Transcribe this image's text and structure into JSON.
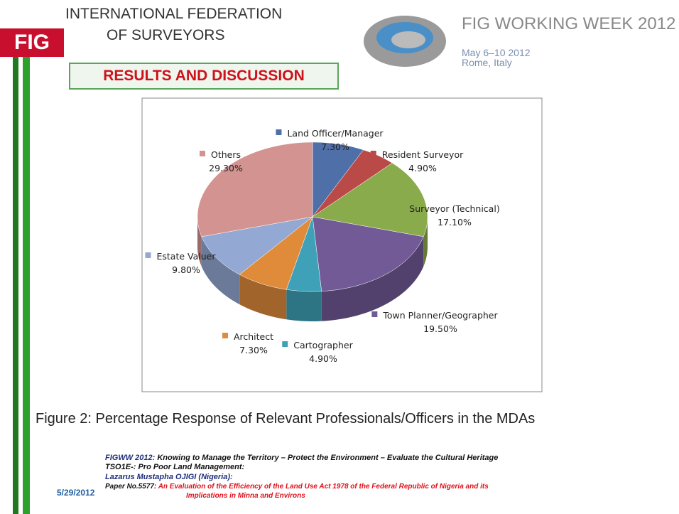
{
  "header": {
    "logo": "FIG",
    "org_line1": "INTERNATIONAL FEDERATION",
    "org_line2": "OF SURVEYORS",
    "event": "FIG WORKING WEEK 2012",
    "dates": "May 6–10 2012",
    "place": "Rome, Italy",
    "section": "RESULTS AND DISCUSSION"
  },
  "chart_data": {
    "type": "pie3d",
    "categories": [
      "Land Officer/Manager",
      "Resident Surveyor",
      "Surveyor (Technical)",
      "Town Planner/Geographer",
      "Cartographer",
      "Architect",
      "Estate Valuer",
      "Others"
    ],
    "values": [
      7.3,
      4.9,
      17.1,
      19.5,
      4.9,
      7.3,
      9.8,
      29.3
    ],
    "value_labels": [
      "7.30%",
      "4.90%",
      "17.10%",
      "19.50%",
      "4.90%",
      "7.30%",
      "9.80%",
      "29.30%"
    ],
    "colors": [
      "#4f6fa8",
      "#b94a48",
      "#8aab4b",
      "#715a96",
      "#3fa1b8",
      "#e08b3a",
      "#93a9d3",
      "#d39390"
    ]
  },
  "caption": "Figure 2: Percentage Response of Relevant Professionals/Officers in the MDAs",
  "footer": {
    "theme_label": "FIGWW 2012:",
    "theme": "Knowing to Manage the Territory – Protect the Environment – Evaluate the Cultural Heritage",
    "session": "TSO1E-: Pro Poor Land Management:",
    "author": "Lazarus  Mustapha OJIGI (Nigeria):",
    "paper_label": "Paper No.5577:",
    "paper_title": [
      "An Evaluation of the Efficiency of the Land Use Act 1978 of the Federal Republic of Nigeria and its",
      "Implications in Minna and Environs"
    ],
    "date": "5/29/2012"
  }
}
